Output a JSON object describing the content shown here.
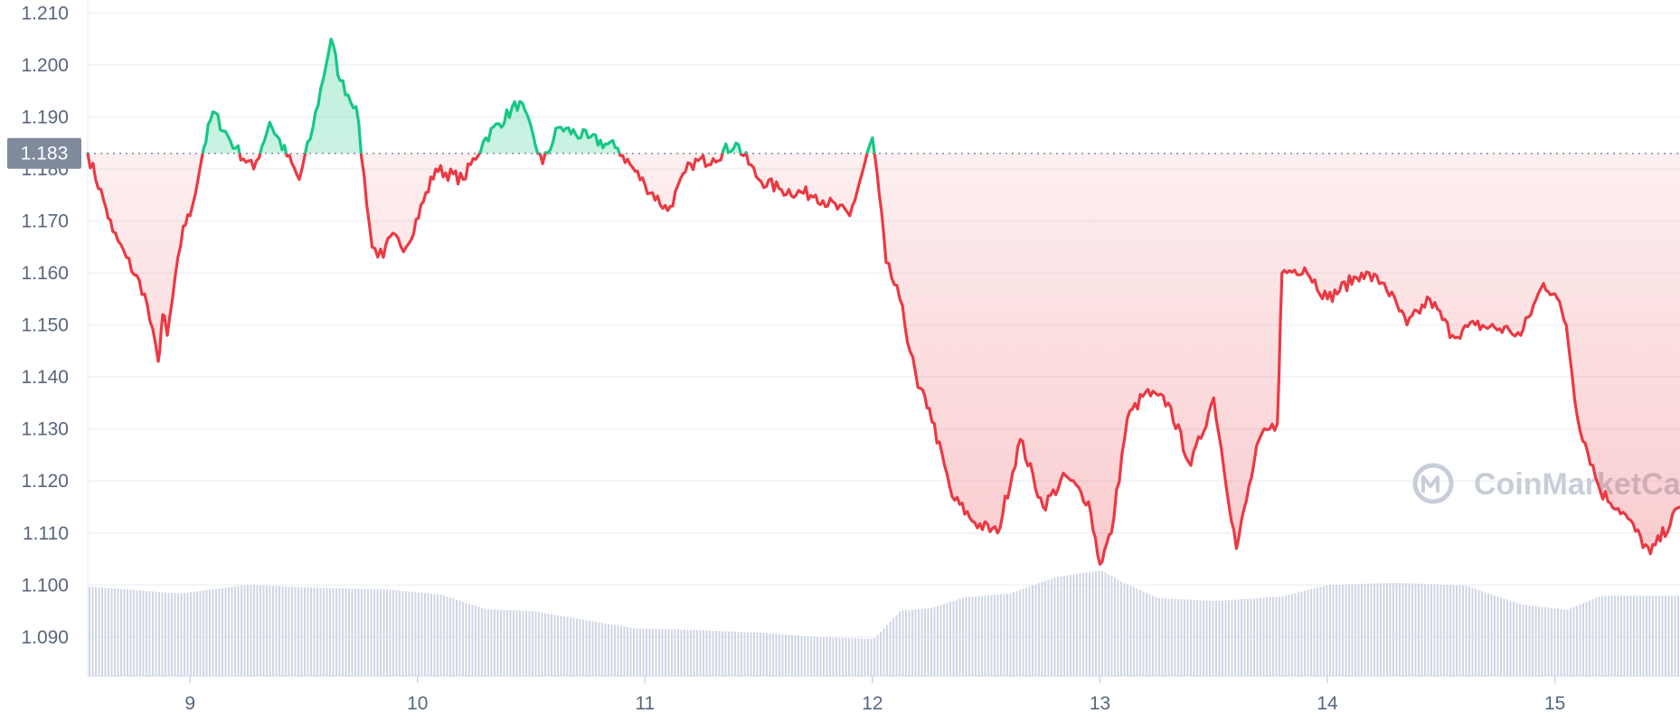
{
  "colors": {
    "up": "#16c784",
    "down": "#ea3943",
    "grid": "#eff2f5",
    "axis_text": "#58667e",
    "reference_badge": "#808a9d",
    "volume": "#cfd6e4"
  },
  "watermark": {
    "text": "CoinMarketCap",
    "icon": "coinmarketcap-logo-icon"
  },
  "chart_data": {
    "type": "area",
    "xlabel": "",
    "ylabel": "",
    "x_ticks": [
      "9",
      "10",
      "11",
      "12",
      "13",
      "14",
      "15"
    ],
    "x_range": [
      8.55,
      15.55
    ],
    "y_ticks": [
      "1.090",
      "1.100",
      "1.110",
      "1.120",
      "1.130",
      "1.140",
      "1.150",
      "1.160",
      "1.170",
      "1.180",
      "1.190",
      "1.200",
      "1.210"
    ],
    "ylim": [
      1.0825,
      1.2125
    ],
    "grid": true,
    "reference": {
      "value": 1.183,
      "label": "1.183",
      "style": "dotted"
    },
    "coloring": "green above reference, red below reference",
    "series": [
      {
        "x": [
          8.55,
          8.62,
          8.66,
          8.72,
          8.8,
          8.86,
          8.88,
          8.9,
          8.97,
          9.0,
          9.06,
          9.1,
          9.2,
          9.28,
          9.35,
          9.48,
          9.54,
          9.62,
          9.66,
          9.73,
          9.8,
          9.85,
          9.88,
          9.95,
          10.08,
          10.2,
          10.3,
          10.45,
          10.55,
          10.62,
          10.75,
          10.88,
          11.0,
          11.1,
          11.2,
          11.3,
          11.4,
          11.5,
          11.6,
          11.75,
          11.9,
          12.0,
          12.03,
          12.06,
          12.12,
          12.2,
          12.25,
          12.35,
          12.45,
          12.55,
          12.65,
          12.75,
          12.85,
          12.95,
          13.0,
          13.05,
          13.12,
          13.2,
          13.3,
          13.4,
          13.5,
          13.6,
          13.7,
          13.78,
          13.8,
          13.9,
          14.0,
          14.15,
          14.25,
          14.35,
          14.45,
          14.55,
          14.65,
          14.8,
          14.85,
          14.95,
          15.0,
          15.05,
          15.1,
          15.2,
          15.3,
          15.42,
          15.55
        ],
        "y": [
          1.183,
          1.174,
          1.168,
          1.163,
          1.156,
          1.143,
          1.152,
          1.148,
          1.169,
          1.171,
          1.184,
          1.191,
          1.184,
          1.18,
          1.189,
          1.178,
          1.188,
          1.205,
          1.197,
          1.192,
          1.165,
          1.163,
          1.167,
          1.165,
          1.18,
          1.178,
          1.186,
          1.193,
          1.181,
          1.188,
          1.186,
          1.184,
          1.177,
          1.172,
          1.181,
          1.182,
          1.185,
          1.178,
          1.176,
          1.175,
          1.171,
          1.186,
          1.175,
          1.162,
          1.155,
          1.138,
          1.134,
          1.117,
          1.112,
          1.11,
          1.128,
          1.115,
          1.121,
          1.116,
          1.104,
          1.11,
          1.132,
          1.137,
          1.135,
          1.123,
          1.136,
          1.107,
          1.128,
          1.131,
          1.16,
          1.161,
          1.155,
          1.16,
          1.158,
          1.15,
          1.155,
          1.148,
          1.15,
          1.149,
          1.148,
          1.158,
          1.156,
          1.15,
          1.132,
          1.118,
          1.114,
          1.106,
          1.115
        ]
      }
    ],
    "volume": {
      "x": [
        8.55,
        8.95,
        9.25,
        9.6,
        9.85,
        10.1,
        10.3,
        10.5,
        10.75,
        10.95,
        11.2,
        11.5,
        11.75,
        12.0,
        12.12,
        12.25,
        12.4,
        12.6,
        12.8,
        13.0,
        13.1,
        13.25,
        13.5,
        13.8,
        14.0,
        14.3,
        14.6,
        14.85,
        15.05,
        15.2,
        15.55
      ],
      "values": [
        16.5,
        15.2,
        16.8,
        16.2,
        16.0,
        15.0,
        12.3,
        12.0,
        10.2,
        8.8,
        8.5,
        8.0,
        7.2,
        6.8,
        12.0,
        12.5,
        14.5,
        15.2,
        18.2,
        19.5,
        17.2,
        14.4,
        13.8,
        14.7,
        16.8,
        17.2,
        16.7,
        13.2,
        12.2,
        14.8,
        14.8
      ]
    }
  }
}
